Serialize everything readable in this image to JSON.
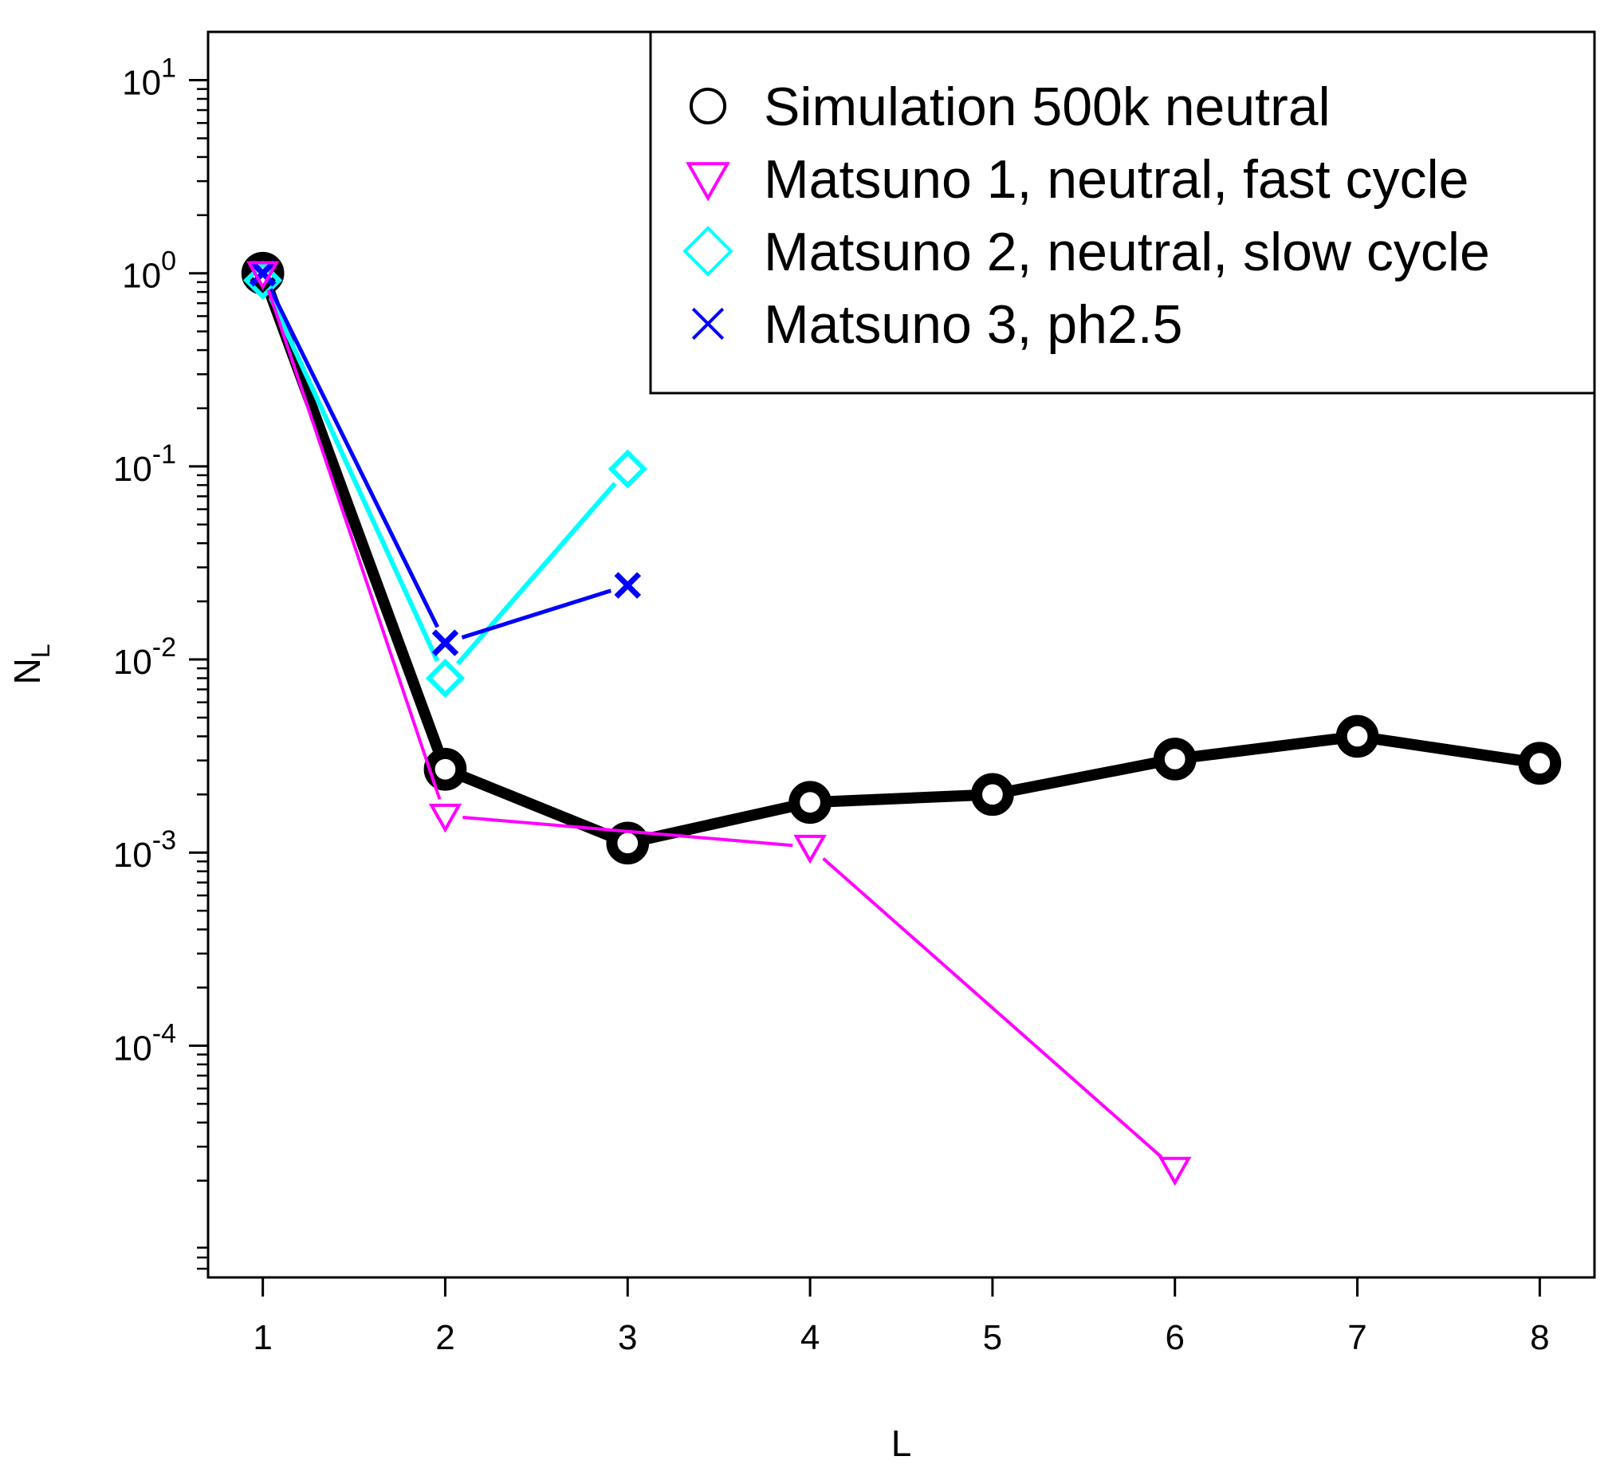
{
  "chart_data": {
    "type": "line",
    "title": "",
    "xlabel": "L",
    "ylabel": {
      "main": "N",
      "sub": "L"
    },
    "x_scale": "linear",
    "y_scale": "log",
    "xlim": [
      0.7,
      8.3
    ],
    "ylim_log10": [
      -5.2,
      1.25
    ],
    "x_ticks": [
      {
        "value": 1,
        "label": "1"
      },
      {
        "value": 2,
        "label": "2"
      },
      {
        "value": 3,
        "label": "3"
      },
      {
        "value": 4,
        "label": "4"
      },
      {
        "value": 5,
        "label": "5"
      },
      {
        "value": 6,
        "label": "6"
      },
      {
        "value": 7,
        "label": "7"
      },
      {
        "value": 8,
        "label": "8"
      }
    ],
    "y_ticks": [
      {
        "exp": 1,
        "base": "10",
        "sup": "1"
      },
      {
        "exp": 0,
        "base": "10",
        "sup": "0"
      },
      {
        "exp": -1,
        "base": "10",
        "sup": "-1"
      },
      {
        "exp": -2,
        "base": "10",
        "sup": "-2"
      },
      {
        "exp": -3,
        "base": "10",
        "sup": "-3"
      },
      {
        "exp": -4,
        "base": "10",
        "sup": "-4"
      }
    ],
    "grid": false,
    "legend_position": "top-right",
    "series": [
      {
        "name": "Simulation 500k neutral",
        "marker": "circle",
        "color": "#000000",
        "x": [
          1,
          2,
          3,
          4,
          5,
          6,
          7,
          8
        ],
        "y": [
          1.0,
          0.0027,
          0.00112,
          0.00182,
          0.002,
          0.00305,
          0.004,
          0.0029
        ]
      },
      {
        "name": "Matsuno 1, neutral, fast cycle",
        "marker": "triangle-down",
        "color": "#ff00ff",
        "x": [
          1,
          2,
          4,
          6
        ],
        "y": [
          1.0,
          0.00155,
          0.00107,
          2.3e-05
        ]
      },
      {
        "name": "Matsuno 2, neutral, slow cycle",
        "marker": "diamond",
        "color": "#00ffff",
        "x": [
          1,
          2,
          3
        ],
        "y": [
          0.92,
          0.008,
          0.097
        ]
      },
      {
        "name": "Matsuno 3, ph2.5",
        "marker": "x",
        "color": "#0000ff",
        "x": [
          1,
          2,
          3
        ],
        "y": [
          1.0,
          0.0122,
          0.0242
        ]
      }
    ]
  }
}
